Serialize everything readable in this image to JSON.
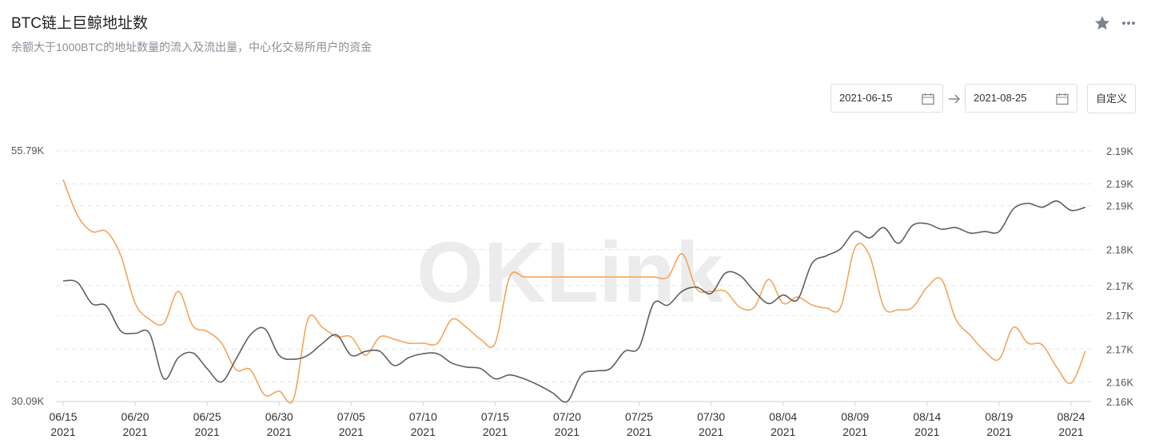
{
  "chart_data": {
    "type": "line",
    "title": "BTC链上巨鲸地址数",
    "subtitle": "余额大于1000BTC的地址数量的流入及流出量，中心化交易所用户的资金",
    "categories": [
      "06/15",
      null,
      null,
      null,
      null,
      "06/20",
      null,
      null,
      null,
      null,
      "06/25",
      null,
      null,
      null,
      null,
      "06/30",
      null,
      null,
      null,
      null,
      "07/05",
      null,
      null,
      null,
      null,
      "07/10",
      null,
      null,
      null,
      null,
      "07/15",
      null,
      null,
      null,
      null,
      "07/20",
      null,
      null,
      null,
      null,
      "07/25",
      null,
      null,
      null,
      null,
      "07/30",
      null,
      null,
      null,
      null,
      "08/04",
      null,
      null,
      null,
      null,
      "08/09",
      null,
      null,
      null,
      null,
      "08/14",
      null,
      null,
      null,
      null,
      "08/19",
      null,
      null,
      null,
      null,
      "08/24",
      null
    ],
    "category_year": "2021",
    "ylim": [
      30090,
      55790
    ],
    "yticks": [
      {
        "value": 30090,
        "label": "30.09K"
      },
      {
        "value": 55790,
        "label": "55.79K"
      }
    ],
    "y2lim": [
      2160,
      2192
    ],
    "y2ticks": [
      {
        "value": 2160,
        "label": "2.16K"
      },
      {
        "value": 2162.5,
        "label": "2.16K"
      },
      {
        "value": 2166.7,
        "label": "2.17K"
      },
      {
        "value": 2171,
        "label": "2.17K"
      },
      {
        "value": 2174.8,
        "label": "2.17K"
      },
      {
        "value": 2179.4,
        "label": "2.18K"
      },
      {
        "value": 2185,
        "label": "2.19K"
      },
      {
        "value": 2187.8,
        "label": "2.19K"
      },
      {
        "value": 2192,
        "label": "2.19K"
      }
    ],
    "grid": true,
    "watermark": "OKLink",
    "series": [
      {
        "color": "#f2a65a",
        "values": [
          52840,
          49160,
          47520,
          47520,
          45070,
          40160,
          38520,
          38110,
          41390,
          37870,
          37290,
          36070,
          33360,
          33360,
          30750,
          31150,
          30340,
          38520,
          37700,
          36720,
          36720,
          34840,
          36720,
          36470,
          36070,
          36070,
          36070,
          38520,
          37700,
          36470,
          36070,
          42860,
          42860,
          42860,
          42860,
          42860,
          42860,
          42860,
          42860,
          42860,
          42860,
          42860,
          42860,
          45230,
          41630,
          41390,
          41390,
          39750,
          39750,
          42610,
          40160,
          40810,
          39990,
          39670,
          39750,
          45890,
          45070,
          39750,
          39500,
          39750,
          41800,
          42610,
          38520,
          36880,
          35250,
          34430,
          37700,
          36070,
          35900,
          33610,
          31970,
          35250
        ]
      },
      {
        "color": "#5f5f5f",
        "axis": "y2",
        "values": [
          2175.4,
          2175.2,
          2172.5,
          2172.2,
          2169.0,
          2168.7,
          2168.7,
          2162.9,
          2165.6,
          2166.2,
          2164.2,
          2162.5,
          2165.4,
          2168.5,
          2169.3,
          2165.9,
          2165.4,
          2165.9,
          2167.4,
          2168.5,
          2165.9,
          2166.4,
          2166.4,
          2164.6,
          2165.6,
          2166.1,
          2166.1,
          2164.9,
          2164.4,
          2164.2,
          2162.9,
          2163.4,
          2162.9,
          2162.1,
          2161.1,
          2160.0,
          2163.4,
          2163.9,
          2164.2,
          2166.4,
          2166.9,
          2172.5,
          2172.3,
          2174.1,
          2174.6,
          2173.8,
          2176.4,
          2176.1,
          2174.1,
          2172.5,
          2173.6,
          2173.0,
          2177.6,
          2178.6,
          2179.5,
          2181.7,
          2180.9,
          2182.2,
          2180.2,
          2182.5,
          2182.7,
          2182.0,
          2182.2,
          2181.5,
          2181.7,
          2181.7,
          2184.6,
          2185.3,
          2184.8,
          2185.6,
          2184.4,
          2184.8
        ]
      }
    ]
  },
  "date_range": {
    "start": "2021-06-15",
    "end": "2021-08-25",
    "button": "自定义"
  }
}
